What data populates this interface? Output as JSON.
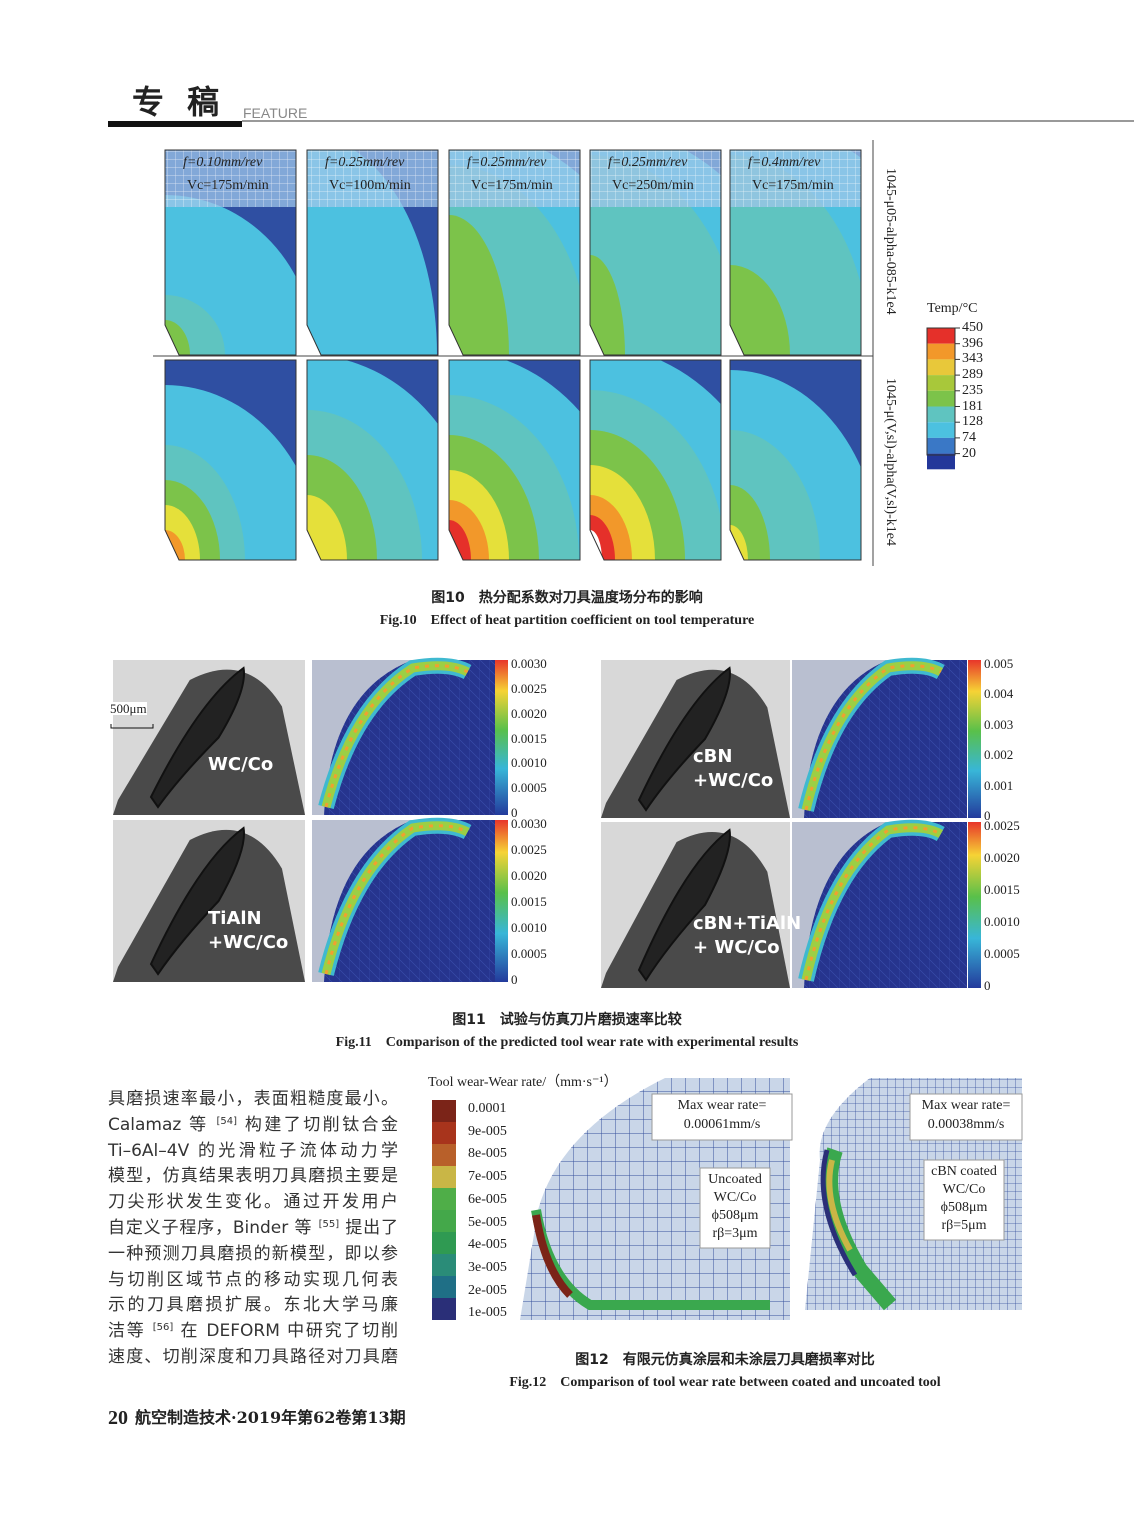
{
  "header": {
    "title": "专 稿",
    "subtitle": "FEATURE"
  },
  "fig10": {
    "panels": [
      {
        "f": "f=0.10mm/rev",
        "v": "Vc=175m/min"
      },
      {
        "f": "f=0.25mm/rev",
        "v": "Vc=100m/min"
      },
      {
        "f": "f=0.25mm/rev",
        "v": "Vc=175m/min"
      },
      {
        "f": "f=0.25mm/rev",
        "v": "Vc=250m/min"
      },
      {
        "f": "f=0.4mm/rev",
        "v": "Vc=175m/min"
      }
    ],
    "row_labels": [
      "1045-μ05-alpha-085-k1e4",
      "1045-μ(V,sl)-alpha(V,sl)-k1e4"
    ],
    "legend_title": "Temp/°C",
    "legend_ticks": [
      "450",
      "396",
      "343",
      "289",
      "235",
      "181",
      "128",
      "74",
      "20"
    ],
    "caption_cn": "图10　热分配系数对刀具温度场分布的影响",
    "caption_en": "Fig.10　Effect of heat partition coefficient on tool temperature"
  },
  "fig11": {
    "scale_bar": "500μm",
    "panels": [
      {
        "label": [
          "WC/Co"
        ],
        "ticks": [
          "0.0030",
          "0.0025",
          "0.0020",
          "0.0015",
          "0.0010",
          "0.0005",
          "0"
        ]
      },
      {
        "label": [
          "cBN",
          "+WC/Co"
        ],
        "ticks": [
          "0.005",
          "0.004",
          "0.003",
          "0.002",
          "0.001",
          "0"
        ]
      },
      {
        "label": [
          "TiAlN",
          "+WC/Co"
        ],
        "ticks": [
          "0.0030",
          "0.0025",
          "0.0020",
          "0.0015",
          "0.0010",
          "0.0005",
          "0"
        ]
      },
      {
        "label": [
          "cBN+TiAlN",
          "+ WC/Co"
        ],
        "ticks": [
          "0.0025",
          "0.0020",
          "0.0015",
          "0.0010",
          "0.0005",
          "0"
        ]
      }
    ],
    "caption_cn": "图11　试验与仿真刀片磨损速率比较",
    "caption_en": "Fig.11　Comparison of the predicted tool wear rate with experimental results"
  },
  "body": [
    "具磨损速率最小，表面粗糙度最小。",
    "Calamaz 等 [54] 构建了切削钛合金",
    "Ti–6Al–4V 的光滑粒子流体动力学",
    "模型，仿真结果表明刀具磨损主要是",
    "刀尖形状发生变化。通过开发用户",
    "自定义子程序，Binder 等 [55] 提出了",
    "一种预测刀具磨损的新模型，即以参",
    "与切削区域节点的移动实现几何表",
    "示的刀具磨损扩展。东北大学马廉",
    "洁等 [56] 在 DEFORM 中研究了切削",
    "速度、切削深度和刀具路径对刀具磨"
  ],
  "fig12": {
    "legend_title": "Tool wear-Wear rate/（mm·s⁻¹）",
    "legend_ticks": [
      "0.0001",
      "9e-005",
      "8e-005",
      "7e-005",
      "6e-005",
      "5e-005",
      "4e-005",
      "3e-005",
      "2e-005",
      "1e-005"
    ],
    "max_left": [
      "Max wear rate=",
      "0.00061mm/s"
    ],
    "max_right": [
      "Max wear rate=",
      "0.00038mm/s"
    ],
    "note_left": [
      "Uncoated",
      "WC/Co",
      "ϕ508μm",
      "rβ=3μm"
    ],
    "note_right": [
      "cBN coated",
      "WC/Co",
      "ϕ508μm",
      "rβ=5μm"
    ],
    "caption_cn": "图12　有限元仿真涂层和未涂层刀具磨损率对比",
    "caption_en": "Fig.12　Comparison of tool wear rate between coated and uncoated tool"
  },
  "footer": {
    "page": "20",
    "journal": "航空制造技术·2019年第62卷第13期"
  }
}
